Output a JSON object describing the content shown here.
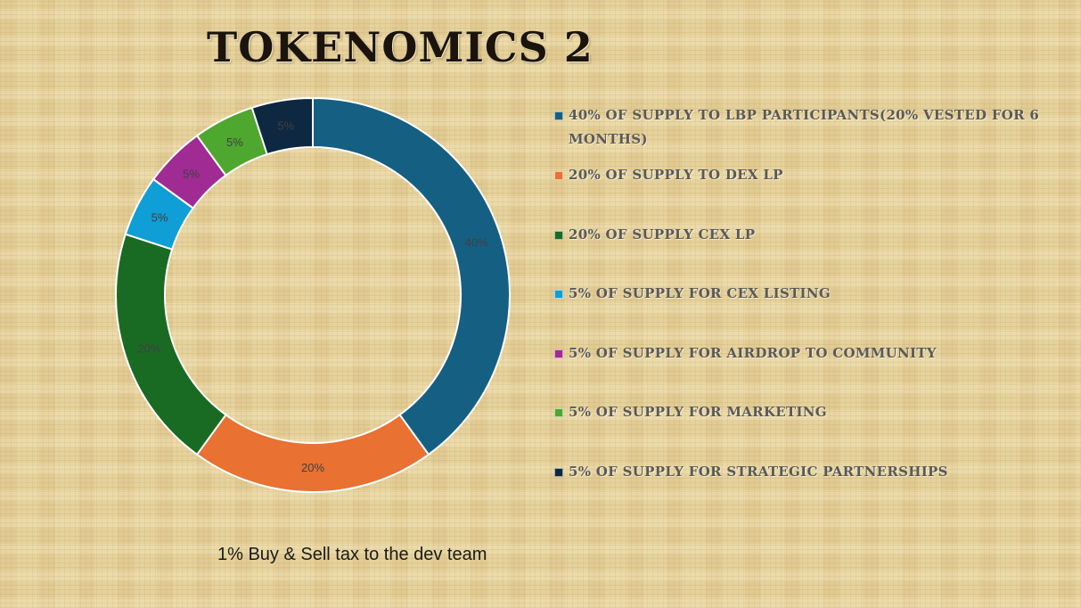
{
  "page": {
    "title": "TOKENOMICS 2",
    "footnote": "1% Buy & Sell tax to the dev team"
  },
  "chart_data": {
    "type": "pie",
    "subtype": "doughnut",
    "title": "TOKENOMICS 2",
    "legend_position": "right",
    "series": [
      {
        "name": "",
        "values": [
          40,
          20,
          20,
          5,
          5,
          5,
          5
        ]
      }
    ],
    "categories": [
      "40% OF SUPPLY TO LBP PARTICIPANTS(20% VESTED FOR 6 MONTHS)",
      "20% OF SUPPLY TO DEX LP",
      "20% OF SUPPLY CEX LP",
      "5% OF SUPPLY FOR CEX LISTING",
      "5% OF SUPPLY FOR AIRDROP TO COMMUNITY",
      "5% OF SUPPLY FOR MARKETING",
      "5% OF SUPPLY FOR STRATEGIC PARTNERSHIPS"
    ],
    "data_labels": [
      "40%",
      "20%",
      "20%",
      "5%",
      "5%",
      "5%",
      "5%"
    ],
    "colors": [
      "#156082",
      "#e97132",
      "#196b24",
      "#0f9ed5",
      "#a02b93",
      "#4ea72e",
      "#0e2841"
    ]
  }
}
